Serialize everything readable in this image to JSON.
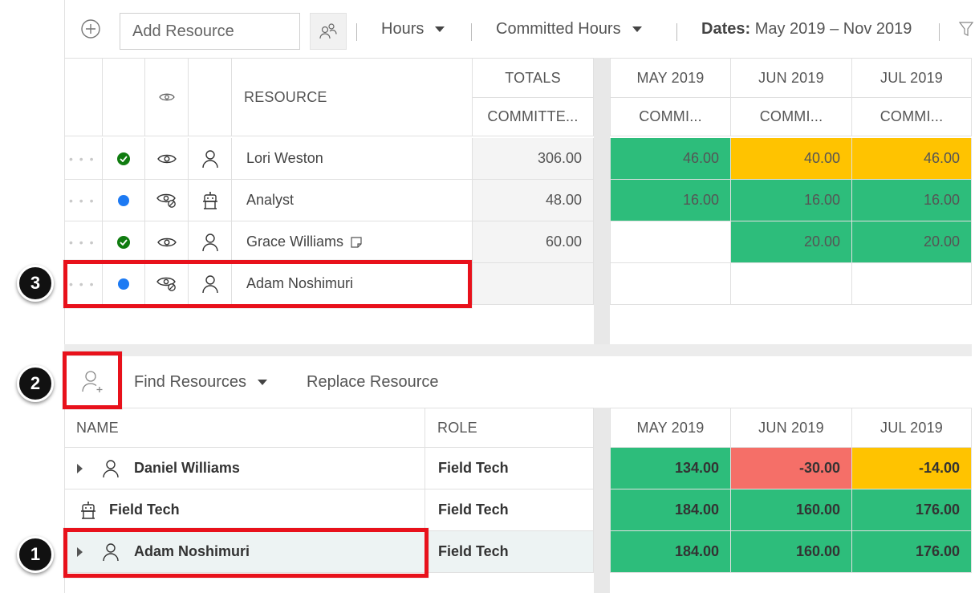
{
  "toolbar": {
    "add_resource_placeholder": "Add Resource",
    "hours_label": "Hours",
    "committed_label": "Committed Hours",
    "dates_label": "Dates:",
    "dates_value": "May 2019 – Nov 2019"
  },
  "top_grid": {
    "headers": {
      "resource": "RESOURCE",
      "totals": "TOTALS",
      "committed": "COMMITTE...",
      "months": [
        "MAY 2019",
        "JUN 2019",
        "JUL 2019"
      ],
      "month_sub": [
        "COMMI...",
        "COMMI...",
        "COMMI..."
      ]
    },
    "rows": [
      {
        "name": "Lori Weston",
        "status": "check",
        "visibility": "visible",
        "type": "person",
        "total": "306.00",
        "months": [
          "46.00",
          "40.00",
          "46.00"
        ],
        "colors": [
          "green",
          "yellow",
          "yellow"
        ]
      },
      {
        "name": "Analyst",
        "status": "dot",
        "visibility": "hidden",
        "type": "role",
        "total": "48.00",
        "months": [
          "16.00",
          "16.00",
          "16.00"
        ],
        "colors": [
          "green",
          "green",
          "green"
        ]
      },
      {
        "name": "Grace Williams",
        "status": "check",
        "visibility": "visible",
        "type": "person",
        "total": "60.00",
        "months": [
          "",
          "20.00",
          "20.00"
        ],
        "colors": [
          "",
          "green",
          "green"
        ]
      },
      {
        "name": "Adam Noshimuri",
        "status": "dot",
        "visibility": "hidden",
        "type": "person",
        "total": "",
        "months": [
          "",
          "",
          ""
        ],
        "colors": [
          "",
          "",
          ""
        ]
      }
    ]
  },
  "bottom_toolbar": {
    "find_resources": "Find Resources",
    "replace_resource": "Replace Resource"
  },
  "bottom_grid": {
    "headers": {
      "name": "NAME",
      "role": "ROLE",
      "months": [
        "MAY 2019",
        "JUN 2019",
        "JUL 2019"
      ]
    },
    "rows": [
      {
        "name": "Daniel Williams",
        "role": "Field Tech",
        "type": "person",
        "expand": true,
        "months": [
          "134.00",
          "-30.00",
          "-14.00"
        ],
        "colors": [
          "green",
          "red",
          "yellow"
        ]
      },
      {
        "name": "Field Tech",
        "role": "Field Tech",
        "type": "role",
        "expand": false,
        "months": [
          "184.00",
          "160.00",
          "176.00"
        ],
        "colors": [
          "green",
          "green",
          "green"
        ]
      },
      {
        "name": "Adam Noshimuri",
        "role": "Field Tech",
        "type": "person",
        "expand": true,
        "months": [
          "184.00",
          "160.00",
          "176.00"
        ],
        "colors": [
          "green",
          "green",
          "green"
        ]
      }
    ]
  },
  "callouts": [
    "3",
    "2",
    "1"
  ],
  "colors": {
    "green": "#2dbd7b",
    "yellow": "#ffc300",
    "red": "#f56f68",
    "highlight": "#e8111b",
    "blue_dot": "#1d7af3",
    "check": "#107c10"
  }
}
